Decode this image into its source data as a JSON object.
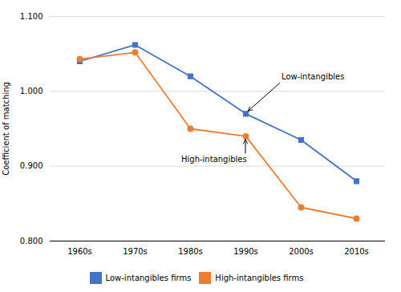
{
  "chart_data": {
    "type": "line",
    "categories": [
      "1960s",
      "1970s",
      "1980s",
      "1990s",
      "2000s",
      "2010s"
    ],
    "series": [
      {
        "name": "Low-intangibles firms",
        "color": "#4472C4",
        "marker": "square",
        "values": [
          1.04,
          1.062,
          1.02,
          0.97,
          0.935,
          0.88
        ]
      },
      {
        "name": "High-intangibles firms",
        "color": "#ED7D31",
        "marker": "circle",
        "values": [
          1.043,
          1.052,
          0.95,
          0.94,
          0.845,
          0.83
        ]
      }
    ],
    "ylabel": "Coefficient of matching",
    "ylim": [
      0.8,
      1.1
    ],
    "yticks": [
      {
        "value": 0.8,
        "label": "0.800"
      },
      {
        "value": 0.9,
        "label": "0.900"
      },
      {
        "value": 1.0,
        "label": "1.000"
      },
      {
        "value": 1.1,
        "label": "1.100"
      }
    ],
    "grid": true,
    "legend": "bottom",
    "annotations": [
      {
        "text": "Low-intangibles",
        "x": "1990s",
        "y": 0.97
      },
      {
        "text": "High-intangibles",
        "x": "1990s",
        "y": 0.94
      }
    ]
  }
}
